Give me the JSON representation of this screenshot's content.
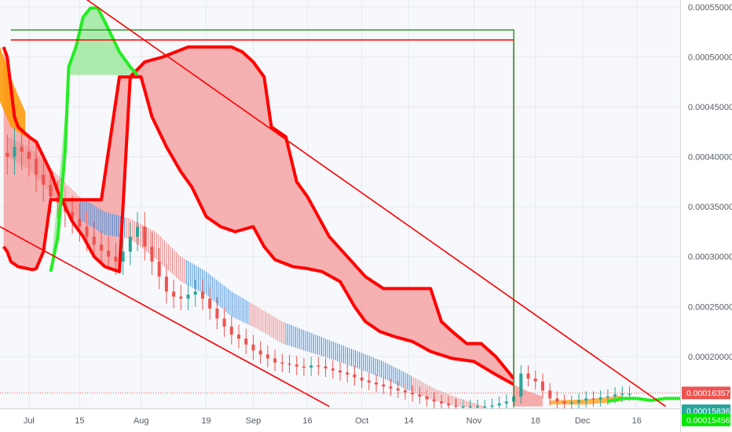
{
  "chart_data": {
    "type": "line",
    "title": "",
    "xlabel": "",
    "ylabel": "",
    "x_range": [
      "2019-06-23",
      "2019-12-28"
    ],
    "ylim": [
      0.000148,
      0.000557
    ],
    "grid": true,
    "x_ticks": [
      {
        "date": "2019-07-01",
        "label": "Jul"
      },
      {
        "date": "2019-07-15",
        "label": "15"
      },
      {
        "date": "2019-08-01",
        "label": "Aug"
      },
      {
        "date": "2019-08-19",
        "label": "19"
      },
      {
        "date": "2019-09-01",
        "label": "Sep"
      },
      {
        "date": "2019-09-16",
        "label": "16"
      },
      {
        "date": "2019-10-01",
        "label": "Oct"
      },
      {
        "date": "2019-10-14",
        "label": "14"
      },
      {
        "date": "2019-11-01",
        "label": "Nov"
      },
      {
        "date": "2019-11-18",
        "label": "18"
      },
      {
        "date": "2019-12-01",
        "label": "Dec"
      },
      {
        "date": "2019-12-16",
        "label": "16"
      }
    ],
    "y_ticks": [
      {
        "value": 0.0002,
        "label": "0.00020000"
      },
      {
        "value": 0.00025,
        "label": "0.00025000"
      },
      {
        "value": 0.0003,
        "label": "0.00030000"
      },
      {
        "value": 0.00035,
        "label": "0.00035000"
      },
      {
        "value": 0.0004,
        "label": "0.00040000"
      },
      {
        "value": 0.00045,
        "label": "0.00045000"
      },
      {
        "value": 0.0005,
        "label": "0.00050000"
      },
      {
        "value": 0.00055,
        "label": "0.00055000"
      }
    ],
    "price_tags": [
      {
        "value": 0.00016357,
        "label": "0.00016357",
        "color": "#ef5350"
      },
      {
        "value": 0.00015836,
        "label": "0.00015836",
        "color": "#26a69a"
      },
      {
        "value": 0.00015456,
        "label": "0.00015456",
        "color": "#00e600"
      }
    ],
    "last_price_line": 0.00016357,
    "colors": {
      "red_cloud": "#ff0000",
      "red_fill": "#f4a3a3",
      "green_cloud": "#22ee22",
      "green_fill": "#9fe89f",
      "orange": "#ff9800",
      "band_red": "#f08080",
      "band_blue": "#3f8fdc",
      "candle_up": "#26a69a",
      "candle_down": "#ef5350",
      "trend_red": "#ff0000",
      "trend_green": "#2e9a2e"
    },
    "trendlines": [
      {
        "color": "red",
        "from": {
          "date": "2019-07-14",
          "value": 0.000565
        },
        "to": {
          "date": "2019-12-24",
          "value": 0.00015
        }
      },
      {
        "color": "red",
        "from": {
          "date": "2019-06-23",
          "value": 0.00033
        },
        "to": {
          "date": "2019-09-22",
          "value": 0.00015
        }
      }
    ],
    "horizontal_lines": [
      {
        "color": "red",
        "from": "2019-06-26",
        "to": "2019-11-12",
        "value": 0.000517,
        "drop_to": 0.00015
      },
      {
        "color": "green",
        "from": "2019-06-26",
        "to": "2019-11-12",
        "value": 0.000527,
        "drop_to": 0.00015
      }
    ],
    "series": [
      {
        "name": "",
        "role": "cloud_upper",
        "color": "red",
        "points": [
          [
            "2019-06-24",
            0.00051
          ],
          [
            "2019-06-25",
            0.0005
          ],
          [
            "2019-06-26",
            0.00047
          ],
          [
            "2019-06-27",
            0.00044
          ],
          [
            "2019-06-28",
            0.00043
          ],
          [
            "2019-07-01",
            0.00042
          ],
          [
            "2019-07-03",
            0.000415
          ],
          [
            "2019-07-05",
            0.0004
          ],
          [
            "2019-07-07",
            0.000385
          ],
          [
            "2019-07-09",
            0.000365
          ],
          [
            "2019-07-11",
            0.00035
          ],
          [
            "2019-07-13",
            0.000335
          ],
          [
            "2019-07-16",
            0.00032
          ],
          [
            "2019-07-19",
            0.0003
          ],
          [
            "2019-07-22",
            0.00029
          ],
          [
            "2019-07-26",
            0.000285
          ],
          [
            "2019-07-29",
            0.00048
          ],
          [
            "2019-08-02",
            0.000495
          ],
          [
            "2019-08-07",
            0.0005
          ],
          [
            "2019-08-14",
            0.00051
          ],
          [
            "2019-08-26",
            0.00051
          ],
          [
            "2019-08-29",
            0.000505
          ],
          [
            "2019-09-01",
            0.000495
          ],
          [
            "2019-09-04",
            0.00048
          ],
          [
            "2019-09-06",
            0.00043
          ],
          [
            "2019-09-10",
            0.00042
          ],
          [
            "2019-09-13",
            0.000375
          ],
          [
            "2019-09-16",
            0.00036
          ],
          [
            "2019-09-19",
            0.00034
          ],
          [
            "2019-09-22",
            0.00032
          ],
          [
            "2019-09-27",
            0.0003
          ],
          [
            "2019-10-02",
            0.00028
          ],
          [
            "2019-10-07",
            0.000268
          ],
          [
            "2019-10-16",
            0.000268
          ],
          [
            "2019-10-20",
            0.000268
          ],
          [
            "2019-10-23",
            0.000235
          ],
          [
            "2019-10-26",
            0.000225
          ],
          [
            "2019-10-30",
            0.000213
          ],
          [
            "2019-11-03",
            0.000213
          ],
          [
            "2019-11-07",
            0.0002
          ],
          [
            "2019-11-12",
            0.000178
          ]
        ]
      },
      {
        "name": "",
        "role": "cloud_lower",
        "color": "red",
        "points": [
          [
            "2019-06-24",
            0.00031
          ],
          [
            "2019-06-25",
            0.000305
          ],
          [
            "2019-06-26",
            0.000295
          ],
          [
            "2019-06-28",
            0.00029
          ],
          [
            "2019-07-02",
            0.000287
          ],
          [
            "2019-07-03",
            0.000288
          ],
          [
            "2019-07-05",
            0.000305
          ],
          [
            "2019-07-07",
            0.000357
          ],
          [
            "2019-07-13",
            0.000357
          ],
          [
            "2019-07-15",
            0.000357
          ],
          [
            "2019-07-18",
            0.000357
          ],
          [
            "2019-07-21",
            0.000357
          ],
          [
            "2019-07-26",
            0.00048
          ],
          [
            "2019-08-01",
            0.00048
          ],
          [
            "2019-08-04",
            0.00044
          ],
          [
            "2019-08-08",
            0.00041
          ],
          [
            "2019-08-12",
            0.000385
          ],
          [
            "2019-08-15",
            0.00037
          ],
          [
            "2019-08-19",
            0.00034
          ],
          [
            "2019-08-23",
            0.00033
          ],
          [
            "2019-08-27",
            0.000325
          ],
          [
            "2019-09-01",
            0.00033
          ],
          [
            "2019-09-04",
            0.00031
          ],
          [
            "2019-09-07",
            0.000297
          ],
          [
            "2019-09-12",
            0.00029
          ],
          [
            "2019-09-16",
            0.000288
          ],
          [
            "2019-09-20",
            0.000285
          ],
          [
            "2019-09-25",
            0.000275
          ],
          [
            "2019-09-29",
            0.00025
          ],
          [
            "2019-10-02",
            0.000235
          ],
          [
            "2019-10-06",
            0.000225
          ],
          [
            "2019-10-10",
            0.00022
          ],
          [
            "2019-10-15",
            0.000215
          ],
          [
            "2019-10-20",
            0.000205
          ],
          [
            "2019-10-26",
            0.000198
          ],
          [
            "2019-11-01",
            0.000195
          ],
          [
            "2019-11-07",
            0.000182
          ],
          [
            "2019-11-12",
            0.000172
          ]
        ]
      },
      {
        "name": "",
        "role": "green_span",
        "color": "green",
        "points": [
          [
            "2019-07-07",
            0.000285
          ],
          [
            "2019-07-09",
            0.00032
          ],
          [
            "2019-07-11",
            0.000405
          ],
          [
            "2019-07-12",
            0.00049
          ],
          [
            "2019-07-14",
            0.00051
          ],
          [
            "2019-07-16",
            0.00054
          ],
          [
            "2019-07-18",
            0.000549
          ],
          [
            "2019-07-20",
            0.000549
          ],
          [
            "2019-07-22",
            0.000535
          ],
          [
            "2019-07-24",
            0.00052
          ],
          [
            "2019-07-26",
            0.000505
          ],
          [
            "2019-07-29",
            0.00049
          ],
          [
            "2019-07-31",
            0.000482
          ]
        ]
      },
      {
        "name": "",
        "role": "candles_close",
        "color": "mixed",
        "points": [
          [
            "2019-06-25",
            0.0004
          ],
          [
            "2019-06-27",
            0.00041
          ],
          [
            "2019-06-29",
            0.000405
          ],
          [
            "2019-07-01",
            0.000398
          ],
          [
            "2019-07-03",
            0.000382
          ],
          [
            "2019-07-05",
            0.000372
          ],
          [
            "2019-07-07",
            0.00036
          ],
          [
            "2019-07-09",
            0.000354
          ],
          [
            "2019-07-11",
            0.000345
          ],
          [
            "2019-07-13",
            0.000338
          ],
          [
            "2019-07-15",
            0.00033
          ],
          [
            "2019-07-17",
            0.00032
          ],
          [
            "2019-07-19",
            0.000312
          ],
          [
            "2019-07-21",
            0.000306
          ],
          [
            "2019-07-23",
            0.0003
          ],
          [
            "2019-07-25",
            0.000295
          ],
          [
            "2019-07-27",
            0.000305
          ],
          [
            "2019-07-29",
            0.00032
          ],
          [
            "2019-07-31",
            0.00033
          ],
          [
            "2019-08-02",
            0.00031
          ],
          [
            "2019-08-04",
            0.000295
          ],
          [
            "2019-08-06",
            0.00028
          ],
          [
            "2019-08-08",
            0.000265
          ],
          [
            "2019-08-10",
            0.00026
          ],
          [
            "2019-08-12",
            0.000258
          ],
          [
            "2019-08-14",
            0.000262
          ],
          [
            "2019-08-16",
            0.000265
          ],
          [
            "2019-08-18",
            0.000258
          ],
          [
            "2019-08-20",
            0.000248
          ],
          [
            "2019-08-22",
            0.000238
          ],
          [
            "2019-08-24",
            0.00023
          ],
          [
            "2019-08-26",
            0.000222
          ],
          [
            "2019-08-28",
            0.000218
          ],
          [
            "2019-08-30",
            0.000212
          ],
          [
            "2019-09-01",
            0.000206
          ],
          [
            "2019-09-03",
            0.000202
          ],
          [
            "2019-09-05",
            0.000198
          ],
          [
            "2019-09-07",
            0.000194
          ],
          [
            "2019-09-09",
            0.000193
          ],
          [
            "2019-09-11",
            0.000192
          ],
          [
            "2019-09-13",
            0.00019
          ],
          [
            "2019-09-15",
            0.000189
          ],
          [
            "2019-09-17",
            0.000191
          ],
          [
            "2019-09-19",
            0.00019
          ],
          [
            "2019-09-21",
            0.000188
          ],
          [
            "2019-09-23",
            0.000186
          ],
          [
            "2019-09-25",
            0.000184
          ],
          [
            "2019-09-27",
            0.000182
          ],
          [
            "2019-09-29",
            0.000179
          ],
          [
            "2019-10-01",
            0.000176
          ],
          [
            "2019-10-03",
            0.000174
          ],
          [
            "2019-10-05",
            0.000172
          ],
          [
            "2019-10-07",
            0.00017
          ],
          [
            "2019-10-09",
            0.000168
          ],
          [
            "2019-10-11",
            0.000166
          ],
          [
            "2019-10-13",
            0.000164
          ],
          [
            "2019-10-15",
            0.000162
          ],
          [
            "2019-10-17",
            0.00016
          ],
          [
            "2019-10-19",
            0.000157
          ],
          [
            "2019-10-21",
            0.000155
          ],
          [
            "2019-10-23",
            0.000153
          ],
          [
            "2019-10-25",
            0.000151
          ],
          [
            "2019-10-27",
            0.00015
          ],
          [
            "2019-10-29",
            0.00015
          ],
          [
            "2019-10-31",
            0.00015
          ],
          [
            "2019-11-02",
            0.00015
          ],
          [
            "2019-11-04",
            0.00015
          ],
          [
            "2019-11-06",
            0.000151
          ],
          [
            "2019-11-08",
            0.000153
          ],
          [
            "2019-11-10",
            0.000155
          ],
          [
            "2019-11-12",
            0.00016
          ],
          [
            "2019-11-14",
            0.000183
          ],
          [
            "2019-11-16",
            0.000178
          ],
          [
            "2019-11-18",
            0.000175
          ],
          [
            "2019-11-20",
            0.000166
          ],
          [
            "2019-11-22",
            0.000158
          ],
          [
            "2019-11-24",
            0.000155
          ],
          [
            "2019-11-26",
            0.000153
          ],
          [
            "2019-11-28",
            0.000154
          ],
          [
            "2019-11-30",
            0.000156
          ],
          [
            "2019-12-02",
            0.000158
          ],
          [
            "2019-12-04",
            0.000157
          ],
          [
            "2019-12-06",
            0.000159
          ],
          [
            "2019-12-08",
            0.00016
          ],
          [
            "2019-12-10",
            0.000162
          ],
          [
            "2019-12-12",
            0.000163
          ],
          [
            "2019-12-14",
            0.000163
          ]
        ]
      },
      {
        "name": "",
        "role": "band_upper",
        "color": "mixed",
        "points": [
          [
            "2019-06-25",
            0.00042
          ],
          [
            "2019-07-01",
            0.00041
          ],
          [
            "2019-07-08",
            0.000385
          ],
          [
            "2019-07-15",
            0.00036
          ],
          [
            "2019-07-22",
            0.000345
          ],
          [
            "2019-07-29",
            0.000338
          ],
          [
            "2019-08-05",
            0.000325
          ],
          [
            "2019-08-12",
            0.0003
          ],
          [
            "2019-08-19",
            0.000285
          ],
          [
            "2019-08-26",
            0.000265
          ],
          [
            "2019-09-02",
            0.00025
          ],
          [
            "2019-09-09",
            0.000235
          ],
          [
            "2019-09-16",
            0.000225
          ],
          [
            "2019-09-23",
            0.000215
          ],
          [
            "2019-09-30",
            0.000205
          ],
          [
            "2019-10-07",
            0.000195
          ],
          [
            "2019-10-14",
            0.000182
          ],
          [
            "2019-10-21",
            0.000168
          ],
          [
            "2019-10-28",
            0.000158
          ],
          [
            "2019-11-04",
            0.00015
          ]
        ]
      },
      {
        "name": "",
        "role": "band_lower",
        "color": "mixed",
        "points": [
          [
            "2019-06-25",
            0.0004
          ],
          [
            "2019-07-01",
            0.000388
          ],
          [
            "2019-07-08",
            0.00036
          ],
          [
            "2019-07-15",
            0.000337
          ],
          [
            "2019-07-22",
            0.000322
          ],
          [
            "2019-07-29",
            0.000318
          ],
          [
            "2019-08-05",
            0.000298
          ],
          [
            "2019-08-12",
            0.000275
          ],
          [
            "2019-08-19",
            0.000262
          ],
          [
            "2019-08-26",
            0.00024
          ],
          [
            "2019-09-02",
            0.000228
          ],
          [
            "2019-09-09",
            0.000213
          ],
          [
            "2019-09-16",
            0.000205
          ],
          [
            "2019-09-23",
            0.000197
          ],
          [
            "2019-09-30",
            0.000188
          ],
          [
            "2019-10-07",
            0.000178
          ],
          [
            "2019-10-14",
            0.000166
          ],
          [
            "2019-10-21",
            0.000156
          ],
          [
            "2019-10-28",
            0.00015
          ],
          [
            "2019-11-04",
            0.000148
          ]
        ]
      }
    ]
  }
}
